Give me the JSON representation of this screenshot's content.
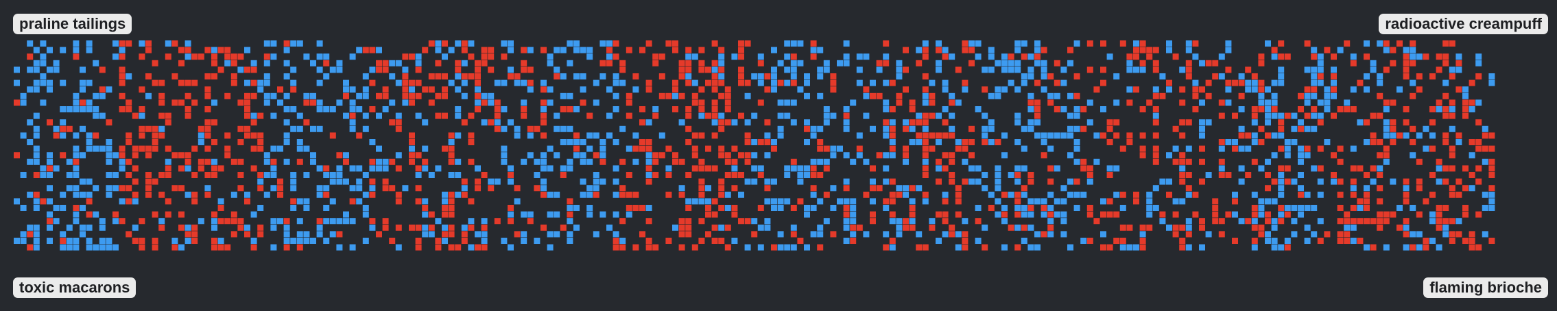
{
  "labels": {
    "top_left": "praline tailings",
    "top_right": "radioactive creampuff",
    "bottom_left": "toxic macarons",
    "bottom_right": "flaming brioche"
  },
  "board": {
    "columns": 225,
    "rows": 32,
    "seed": 1337,
    "background_color": "#26292e",
    "team_colors": {
      "blue": "#3d9bf0",
      "red": "#e53a2a"
    },
    "blue_density": 0.17,
    "red_density": 0.17
  }
}
